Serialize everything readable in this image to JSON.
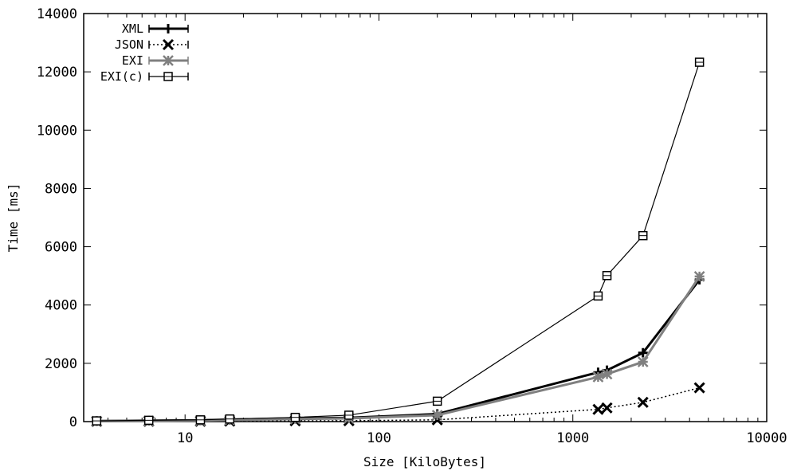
{
  "chart_data": {
    "type": "line",
    "xlabel": "Size [KiloBytes]",
    "ylabel": "Time [ms]",
    "xscale": "log",
    "xlim": [
      3,
      10000
    ],
    "ylim": [
      0,
      14000
    ],
    "xticks": [
      10,
      100,
      1000,
      10000
    ],
    "xtick_labels": [
      "10",
      "100",
      "1000",
      "10000"
    ],
    "yticks": [
      0,
      2000,
      4000,
      6000,
      8000,
      10000,
      12000,
      14000
    ],
    "ytick_labels": [
      "0",
      "2000",
      "4000",
      "6000",
      "8000",
      "10000",
      "12000",
      "14000"
    ],
    "grid": false,
    "legend_position": "top-left",
    "x": [
      3.5,
      6.5,
      12,
      17,
      37,
      70,
      200,
      1350,
      1500,
      2300,
      4500
    ],
    "series": [
      {
        "name": "XML",
        "marker": "plus",
        "line": "solid-thick",
        "color": "#000000",
        "values": [
          20,
          35,
          45,
          70,
          110,
          130,
          260,
          1690,
          1760,
          2360,
          4870
        ]
      },
      {
        "name": "JSON",
        "marker": "cross",
        "line": "dotted",
        "color": "#000000",
        "values": [
          5,
          8,
          10,
          15,
          25,
          30,
          60,
          420,
          470,
          660,
          1160
        ]
      },
      {
        "name": "EXI",
        "marker": "star",
        "line": "solid-thick",
        "color": "#808080",
        "values": [
          15,
          25,
          35,
          55,
          90,
          110,
          220,
          1530,
          1630,
          2050,
          4980
        ]
      },
      {
        "name": "EXI(c)",
        "marker": "box",
        "line": "solid-thin",
        "color": "#000000",
        "values": [
          25,
          45,
          60,
          90,
          145,
          220,
          700,
          4310,
          5010,
          6380,
          12330
        ]
      }
    ]
  }
}
